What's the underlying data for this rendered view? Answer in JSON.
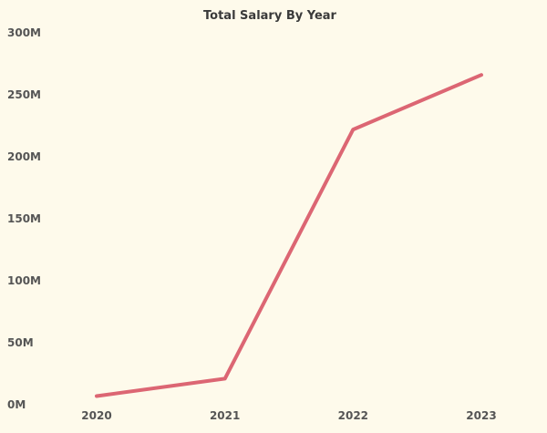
{
  "chart_data": {
    "type": "line",
    "title": "Total Salary By Year",
    "x": [
      "2020",
      "2021",
      "2022",
      "2023"
    ],
    "series": [
      {
        "values": [
          7,
          21,
          222,
          266
        ]
      }
    ],
    "y_unit_suffix": "M",
    "ylim": [
      0,
      300
    ],
    "y_ticks": [
      0,
      50,
      100,
      150,
      200,
      250,
      300
    ],
    "y_tick_labels": [
      "0M",
      "50M",
      "100M",
      "150M",
      "200M",
      "250M",
      "300M"
    ],
    "grid": false,
    "legend": "none",
    "colors": {
      "background": "#fefaeb",
      "line": "#dc6673",
      "text": "#555555",
      "title": "#3a3a3a"
    }
  }
}
